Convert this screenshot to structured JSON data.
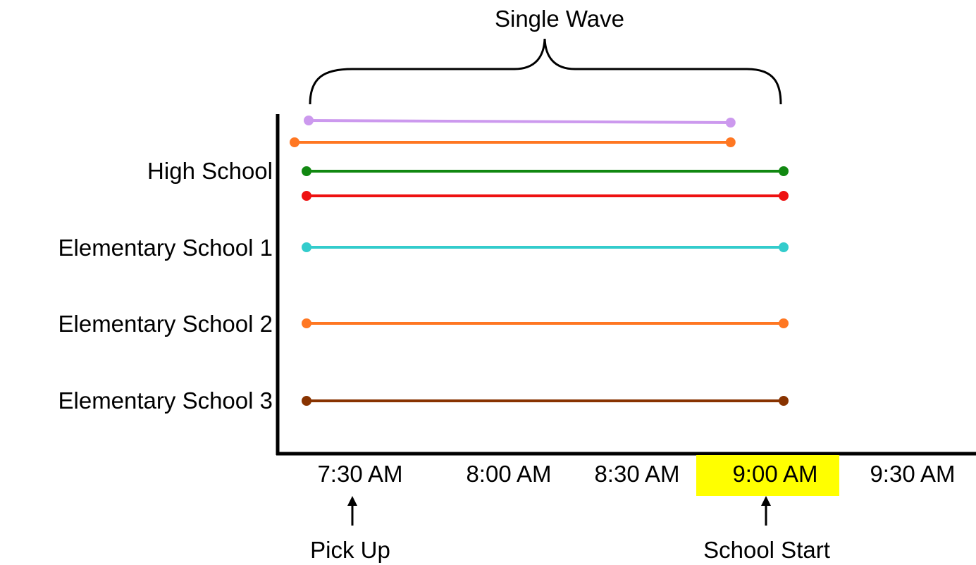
{
  "title": "Single Wave",
  "schools": [
    {
      "label": "High School"
    },
    {
      "label": "Elementary School 1"
    },
    {
      "label": "Elementary School 2"
    },
    {
      "label": "Elementary School 3"
    }
  ],
  "time_ticks": [
    {
      "label": "7:30 AM"
    },
    {
      "label": "8:00 AM"
    },
    {
      "label": "8:30 AM"
    },
    {
      "label": "9:00 AM",
      "highlighted": true
    },
    {
      "label": "9:30 AM"
    }
  ],
  "annotations": {
    "pickup": "Pick Up",
    "school_start": "School Start"
  },
  "colors": {
    "highlight": "#ffff00",
    "lavender": "#cc99ee",
    "orange": "#ff7722",
    "green": "#118811",
    "red": "#ee1111",
    "cyan": "#33cccc",
    "brown": "#883300"
  },
  "routes": [
    {
      "color": "lavender",
      "start": "7:30 AM",
      "end": "8:50 AM"
    },
    {
      "color": "orange",
      "start": "7:30 AM",
      "end": "8:50 AM"
    },
    {
      "color": "green",
      "start": "7:30 AM",
      "end": "9:00 AM"
    },
    {
      "color": "red",
      "start": "7:30 AM",
      "end": "9:00 AM"
    },
    {
      "color": "cyan",
      "start": "7:30 AM",
      "end": "9:00 AM"
    },
    {
      "color": "orange",
      "start": "7:30 AM",
      "end": "9:00 AM"
    },
    {
      "color": "brown",
      "start": "7:30 AM",
      "end": "9:00 AM"
    }
  ]
}
